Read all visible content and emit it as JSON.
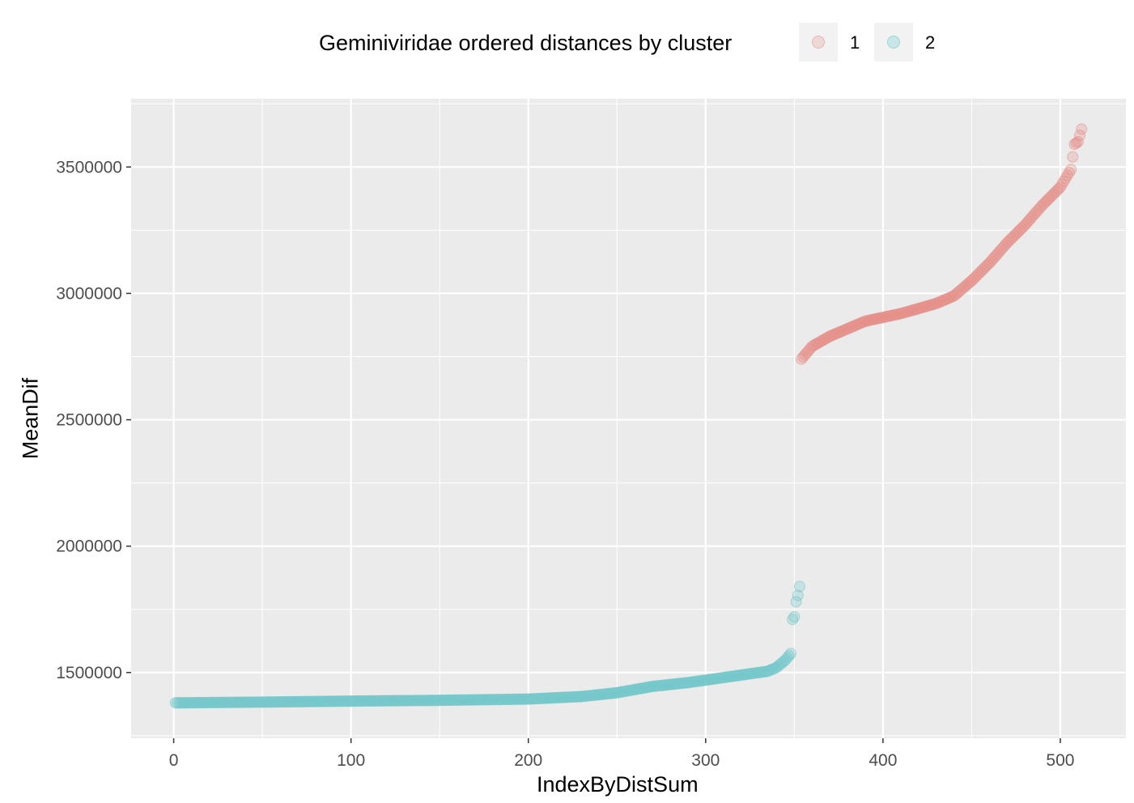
{
  "legend": {
    "title": "Geminiviridae ordered distances by cluster",
    "items": [
      {
        "label": "1",
        "color": "#E58A82"
      },
      {
        "label": "2",
        "color": "#6CC6C8"
      }
    ]
  },
  "chart_data": {
    "type": "scatter",
    "title": "",
    "xlabel": "IndexByDistSum",
    "ylabel": "MeanDif",
    "xlim": [
      -24,
      537
    ],
    "ylim": [
      1240000,
      3770000
    ],
    "xticks": [
      0,
      100,
      200,
      300,
      400,
      500
    ],
    "yticks": [
      1500000,
      2000000,
      2500000,
      3000000,
      3500000
    ],
    "x_tick_labels": [
      "0",
      "100",
      "200",
      "300",
      "400",
      "500"
    ],
    "y_tick_labels": [
      "1500000",
      "2000000",
      "2500000",
      "3000000",
      "3500000"
    ],
    "grid": true,
    "legend_position": "top",
    "series": [
      {
        "name": "1",
        "color": "#E58A82",
        "x_range": [
          354,
          512
        ],
        "anchors": [
          [
            354,
            2740000
          ],
          [
            360,
            2790000
          ],
          [
            370,
            2830000
          ],
          [
            380,
            2860000
          ],
          [
            390,
            2890000
          ],
          [
            400,
            2905000
          ],
          [
            410,
            2920000
          ],
          [
            420,
            2940000
          ],
          [
            430,
            2960000
          ],
          [
            440,
            2990000
          ],
          [
            450,
            3050000
          ],
          [
            460,
            3120000
          ],
          [
            470,
            3200000
          ],
          [
            480,
            3270000
          ],
          [
            490,
            3350000
          ],
          [
            500,
            3420000
          ],
          [
            506,
            3490000
          ],
          [
            508,
            3590000
          ],
          [
            510,
            3600000
          ],
          [
            512,
            3650000
          ]
        ]
      },
      {
        "name": "2",
        "color": "#6CC6C8",
        "x_range": [
          1,
          353
        ],
        "anchors": [
          [
            1,
            1380000
          ],
          [
            50,
            1383000
          ],
          [
            100,
            1387000
          ],
          [
            150,
            1390000
          ],
          [
            200,
            1395000
          ],
          [
            230,
            1405000
          ],
          [
            250,
            1420000
          ],
          [
            270,
            1445000
          ],
          [
            290,
            1460000
          ],
          [
            300,
            1470000
          ],
          [
            320,
            1490000
          ],
          [
            335,
            1505000
          ],
          [
            340,
            1520000
          ],
          [
            345,
            1550000
          ],
          [
            348,
            1575000
          ],
          [
            349,
            1710000
          ],
          [
            350,
            1720000
          ],
          [
            351,
            1780000
          ],
          [
            352,
            1805000
          ],
          [
            353,
            1840000
          ]
        ]
      }
    ]
  }
}
